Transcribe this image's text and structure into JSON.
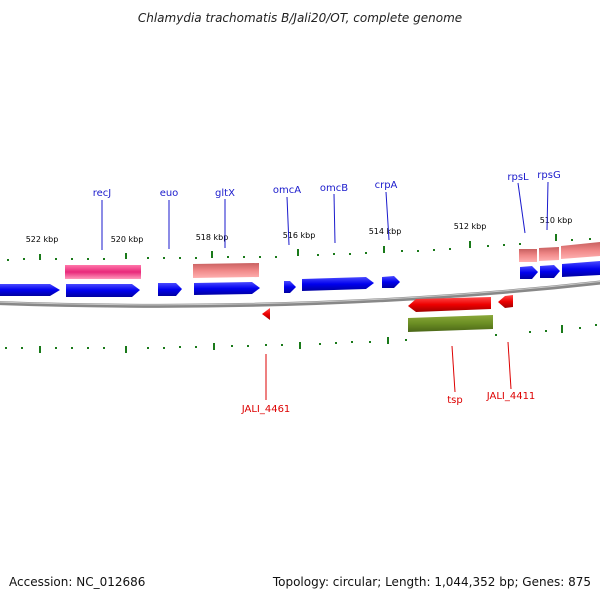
{
  "title": "Chlamydia trachomatis B/Jali20/OT, complete genome",
  "footer": {
    "accession": "Accession: NC_012686",
    "topology": "Topology: circular; Length: 1,044,352 bp; Genes: 875"
  },
  "colors": {
    "blue_gene": "#0000ee",
    "red_gene": "#ee0000",
    "pink_gene": "#e8287a",
    "salmon_gene": "#f08888",
    "olive_gene": "#6b8e23",
    "backbone": "#888888",
    "tick": "#1a7a1a",
    "blue_label": "#1a1acc",
    "red_label": "#dd0000"
  },
  "scale_labels": [
    "522 kbp",
    "520 kbp",
    "518 kbp",
    "516 kbp",
    "514 kbp",
    "512 kbp",
    "510 kbp"
  ],
  "gene_labels_top": [
    "recJ",
    "euo",
    "gltX",
    "omcA",
    "omcB",
    "crpA",
    "rpsL",
    "rpsG"
  ],
  "gene_labels_bottom": [
    "JALI_4461",
    "tsp",
    "JALI_4411"
  ]
}
